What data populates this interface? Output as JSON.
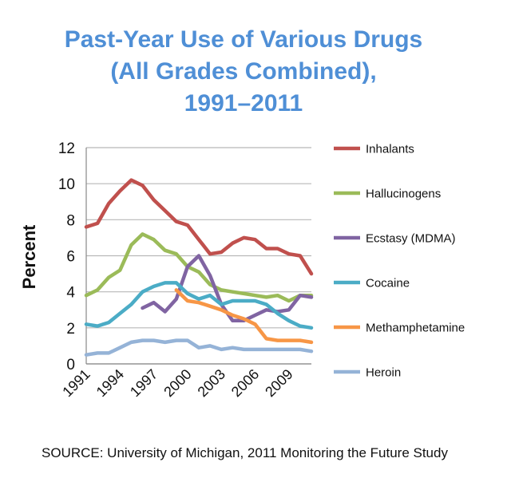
{
  "title_lines": [
    "Past-Year Use of Various Drugs",
    "(All Grades Combined),",
    "1991–2011"
  ],
  "source": "SOURCE: University of Michigan, 2011 Monitoring the Future Study",
  "chart_data": {
    "type": "line",
    "ylabel": "Percent",
    "xlabel": "",
    "ylim": [
      0,
      12
    ],
    "xlim": [
      1991,
      2011
    ],
    "y_ticks": [
      0,
      2,
      4,
      6,
      8,
      10,
      12
    ],
    "x_ticks": [
      1991,
      1994,
      1997,
      2000,
      2003,
      2006,
      2009
    ],
    "grid": "horizontal",
    "legend_position": "right",
    "series": [
      {
        "name": "Inhalants",
        "color": "#c0504d",
        "x": [
          1991,
          1992,
          1993,
          1994,
          1995,
          1996,
          1997,
          1998,
          1999,
          2000,
          2001,
          2002,
          2003,
          2004,
          2005,
          2006,
          2007,
          2008,
          2009,
          2010,
          2011
        ],
        "y": [
          7.6,
          7.8,
          8.9,
          9.6,
          10.2,
          9.9,
          9.1,
          8.5,
          7.9,
          7.7,
          6.9,
          6.1,
          6.2,
          6.7,
          7.0,
          6.9,
          6.4,
          6.4,
          6.1,
          6.0,
          5.0
        ]
      },
      {
        "name": "Hallucinogens",
        "color": "#9bbb59",
        "x": [
          1991,
          1992,
          1993,
          1994,
          1995,
          1996,
          1997,
          1998,
          1999,
          2000,
          2001,
          2002,
          2003,
          2004,
          2005,
          2006,
          2007,
          2008,
          2009,
          2010,
          2011
        ],
        "y": [
          3.8,
          4.1,
          4.8,
          5.2,
          6.6,
          7.2,
          6.9,
          6.3,
          6.1,
          5.4,
          5.1,
          4.4,
          4.1,
          4.0,
          3.9,
          3.8,
          3.7,
          3.8,
          3.5,
          3.8,
          3.8
        ]
      },
      {
        "name": "Ecstasy (MDMA)",
        "color": "#8064a2",
        "x": [
          1996,
          1997,
          1998,
          1999,
          2000,
          2001,
          2002,
          2003,
          2004,
          2005,
          2006,
          2007,
          2008,
          2009,
          2010,
          2011
        ],
        "y": [
          3.1,
          3.4,
          2.9,
          3.6,
          5.4,
          6.0,
          4.9,
          3.3,
          2.4,
          2.4,
          2.7,
          3.0,
          2.9,
          3.0,
          3.8,
          3.7
        ]
      },
      {
        "name": "Cocaine",
        "color": "#4bacc6",
        "x": [
          1991,
          1992,
          1993,
          1994,
          1995,
          1996,
          1997,
          1998,
          1999,
          2000,
          2001,
          2002,
          2003,
          2004,
          2005,
          2006,
          2007,
          2008,
          2009,
          2010,
          2011
        ],
        "y": [
          2.2,
          2.1,
          2.3,
          2.8,
          3.3,
          4.0,
          4.3,
          4.5,
          4.5,
          3.9,
          3.6,
          3.8,
          3.3,
          3.5,
          3.5,
          3.5,
          3.3,
          2.8,
          2.4,
          2.1,
          2.0
        ]
      },
      {
        "name": "Methamphetamine",
        "color": "#f79646",
        "x": [
          1999,
          2000,
          2001,
          2002,
          2003,
          2004,
          2005,
          2006,
          2007,
          2008,
          2009,
          2010,
          2011
        ],
        "y": [
          4.1,
          3.5,
          3.4,
          3.2,
          3.0,
          2.7,
          2.5,
          2.2,
          1.4,
          1.3,
          1.3,
          1.3,
          1.2
        ]
      },
      {
        "name": "Heroin",
        "color": "#95b3d7",
        "x": [
          1991,
          1992,
          1993,
          1994,
          1995,
          1996,
          1997,
          1998,
          1999,
          2000,
          2001,
          2002,
          2003,
          2004,
          2005,
          2006,
          2007,
          2008,
          2009,
          2010,
          2011
        ],
        "y": [
          0.5,
          0.6,
          0.6,
          0.9,
          1.2,
          1.3,
          1.3,
          1.2,
          1.3,
          1.3,
          0.9,
          1.0,
          0.8,
          0.9,
          0.8,
          0.8,
          0.8,
          0.8,
          0.8,
          0.8,
          0.7
        ]
      }
    ]
  }
}
